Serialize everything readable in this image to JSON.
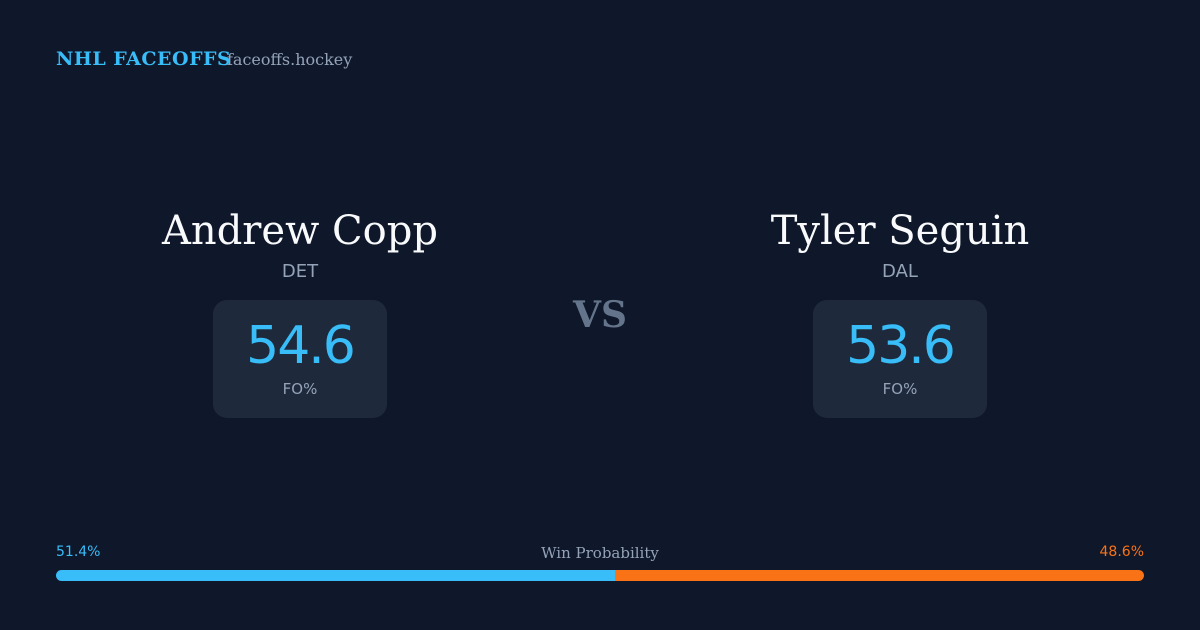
{
  "header": {
    "title": "NHL FACEOFFS",
    "site": "faceoffs.hockey"
  },
  "players": [
    {
      "name": "Andrew Copp",
      "team": "DET",
      "value": 54.6,
      "stat": "FO%"
    },
    {
      "name": "Tyler Seguin",
      "team": "DAL",
      "value": 53.6,
      "stat": "FO%"
    }
  ],
  "vs": "VS",
  "win_probability": {
    "label": "Win Probability",
    "left": {
      "value": 51.4,
      "label": "51.4%",
      "color": "#38bdf8"
    },
    "right": {
      "value": 48.6,
      "label": "48.6%",
      "color": "#f97316"
    }
  }
}
